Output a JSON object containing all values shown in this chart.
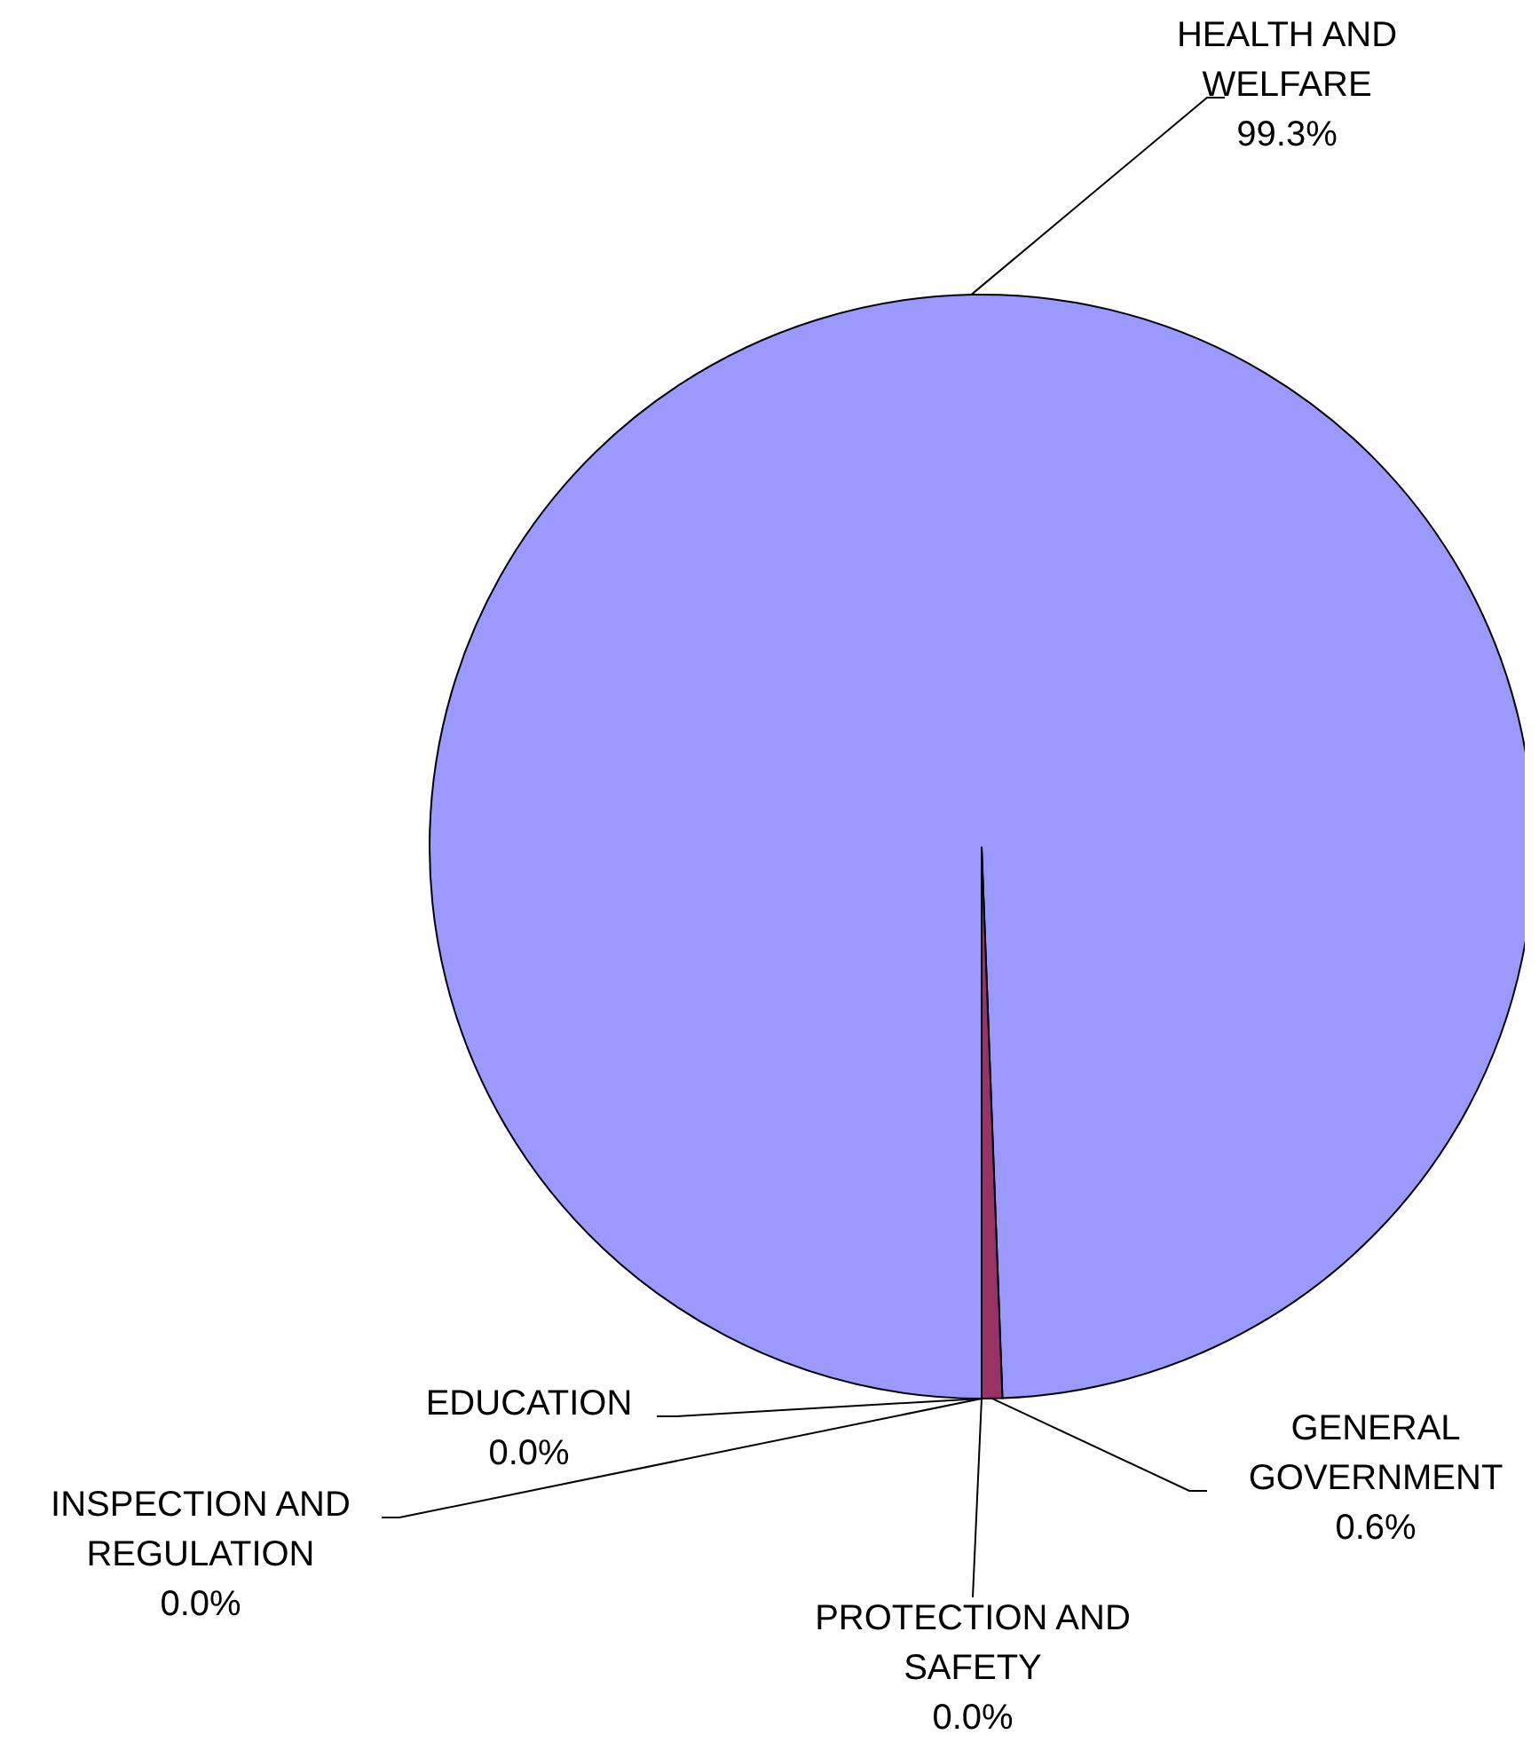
{
  "chart_data": {
    "type": "pie",
    "categories": [
      "HEALTH AND WELFARE",
      "GENERAL GOVERNMENT",
      "PROTECTION AND SAFETY",
      "INSPECTION AND REGULATION",
      "EDUCATION"
    ],
    "values": [
      99.3,
      0.6,
      0.0,
      0.0,
      0.0
    ],
    "value_labels": [
      "99.3%",
      "0.6%",
      "0.0%",
      "0.0%",
      "0.0%"
    ],
    "colors": [
      "#9999ff",
      "#993366",
      "#ffffcc",
      "#ccffff",
      "#660066"
    ],
    "legend": false
  }
}
